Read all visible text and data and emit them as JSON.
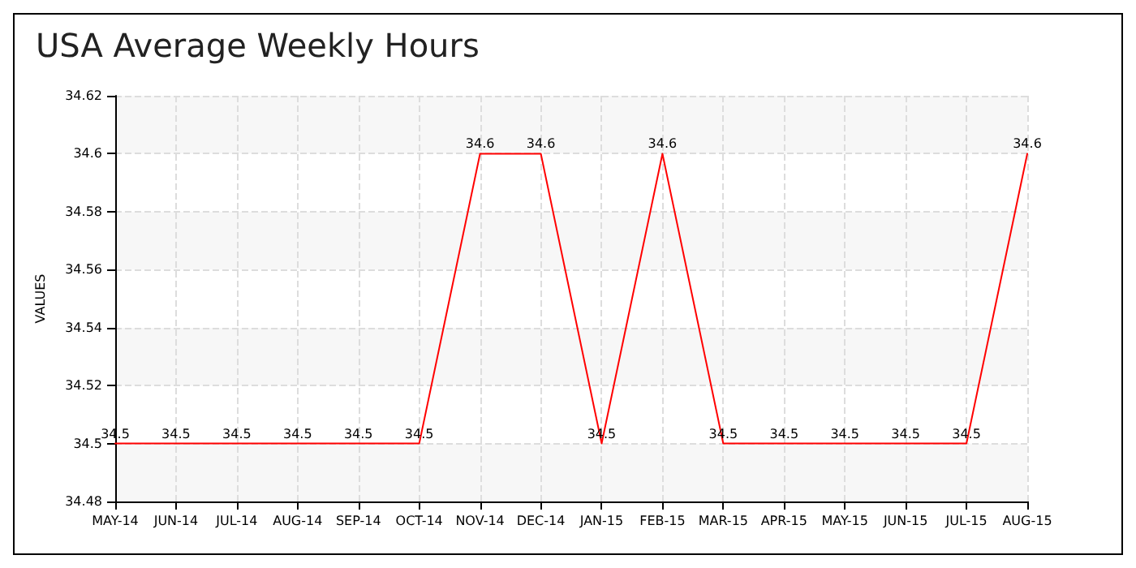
{
  "chart_data": {
    "type": "line",
    "title": "USA Average Weekly Hours",
    "ylabel": "VALUES",
    "categories": [
      "MAY-14",
      "JUN-14",
      "JUL-14",
      "AUG-14",
      "SEP-14",
      "OCT-14",
      "NOV-14",
      "DEC-14",
      "JAN-15",
      "FEB-15",
      "MAR-15",
      "APR-15",
      "MAY-15",
      "JUN-15",
      "JUL-15",
      "AUG-15"
    ],
    "series": [
      {
        "color": "#ff0000",
        "values": [
          34.5,
          34.5,
          34.5,
          34.5,
          34.5,
          34.5,
          34.6,
          34.6,
          34.5,
          34.6,
          34.5,
          34.5,
          34.5,
          34.5,
          34.5,
          34.6
        ]
      }
    ],
    "ylim": [
      34.48,
      34.62
    ],
    "yticks": [
      34.48,
      34.5,
      34.52,
      34.54,
      34.56,
      34.58,
      34.6,
      34.62
    ],
    "grid": true,
    "marker": "none",
    "line_style": "solid",
    "data_labels": true
  }
}
